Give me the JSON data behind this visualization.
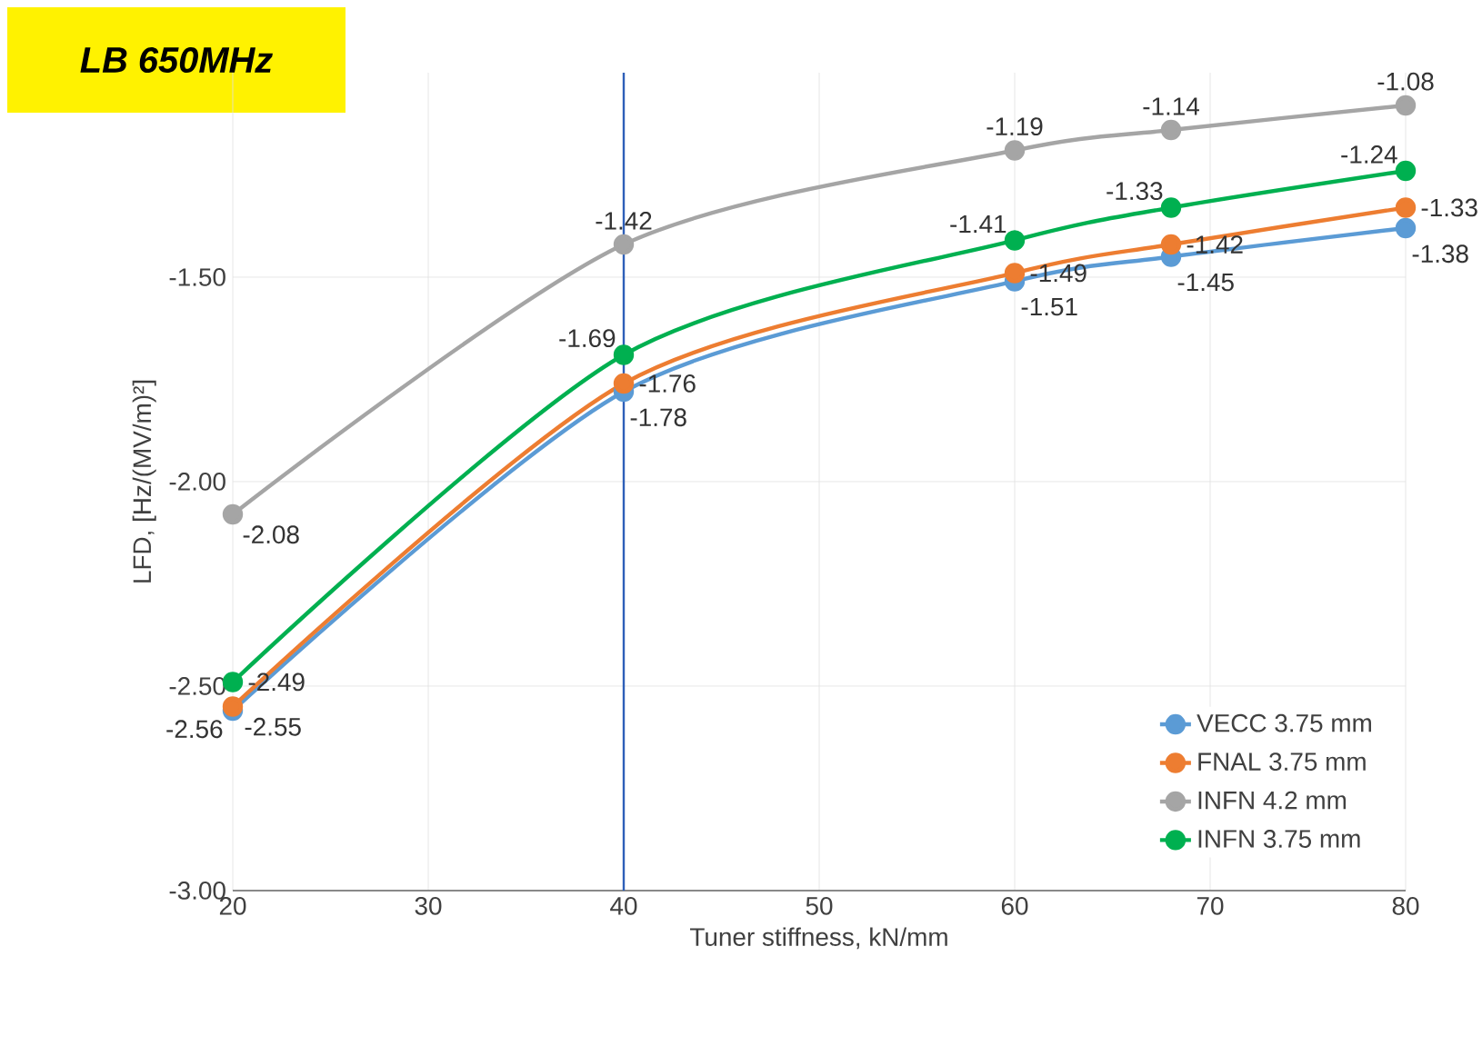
{
  "chart_data": {
    "type": "line",
    "title": "LB 650MHz",
    "xlabel": "Tuner stiffness, kN/mm",
    "ylabel": "LFD, [Hz/(MV/m)²]",
    "x": [
      20,
      40,
      60,
      68,
      80
    ],
    "series": [
      {
        "name": "VECC 3.75 mm",
        "color": "#5b9bd5",
        "values": [
          -2.56,
          -1.78,
          -1.51,
          -1.45,
          -1.38
        ]
      },
      {
        "name": "FNAL 3.75 mm",
        "color": "#ed7d31",
        "values": [
          -2.55,
          -1.76,
          -1.49,
          -1.42,
          -1.33
        ]
      },
      {
        "name": "INFN 4.2 mm",
        "color": "#a5a5a5",
        "values": [
          -2.08,
          -1.42,
          -1.19,
          -1.14,
          -1.08
        ]
      },
      {
        "name": "INFN 3.75 mm",
        "color": "#00b050",
        "values": [
          -2.49,
          -1.69,
          -1.41,
          -1.33,
          -1.24
        ]
      }
    ],
    "xlim": [
      20,
      80
    ],
    "xticks": [
      20,
      30,
      40,
      50,
      60,
      70,
      80
    ],
    "ylim": [
      -3,
      -1
    ],
    "yticks": [
      {
        "value": -3,
        "label": "-3.00"
      },
      {
        "value": -2.5,
        "label": "-2.50"
      },
      {
        "value": -2,
        "label": "-2.00"
      },
      {
        "value": -1.5,
        "label": "-1.50"
      }
    ],
    "ref_lines": [
      {
        "axis": "x",
        "value": 40,
        "color": "#2e5fb8"
      }
    ],
    "data_labels": true,
    "grid": true,
    "legend": "bottom right",
    "marker": "circle",
    "line_style": "solid"
  }
}
